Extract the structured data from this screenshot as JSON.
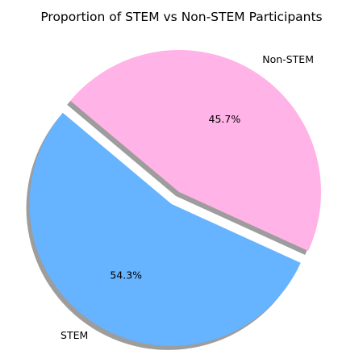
{
  "chart_data": {
    "type": "pie",
    "title": "Proportion of STEM vs Non-STEM Participants",
    "labels": [
      "STEM",
      "Non-STEM"
    ],
    "values": [
      54.3,
      45.7
    ],
    "percent_labels": [
      "54.3%",
      "45.7%"
    ],
    "colors": [
      "#66b3ff",
      "#ffb3e6"
    ],
    "explode": [
      0.1,
      0
    ],
    "start_angle_deg": 140,
    "shadow": true,
    "legend": "none"
  }
}
